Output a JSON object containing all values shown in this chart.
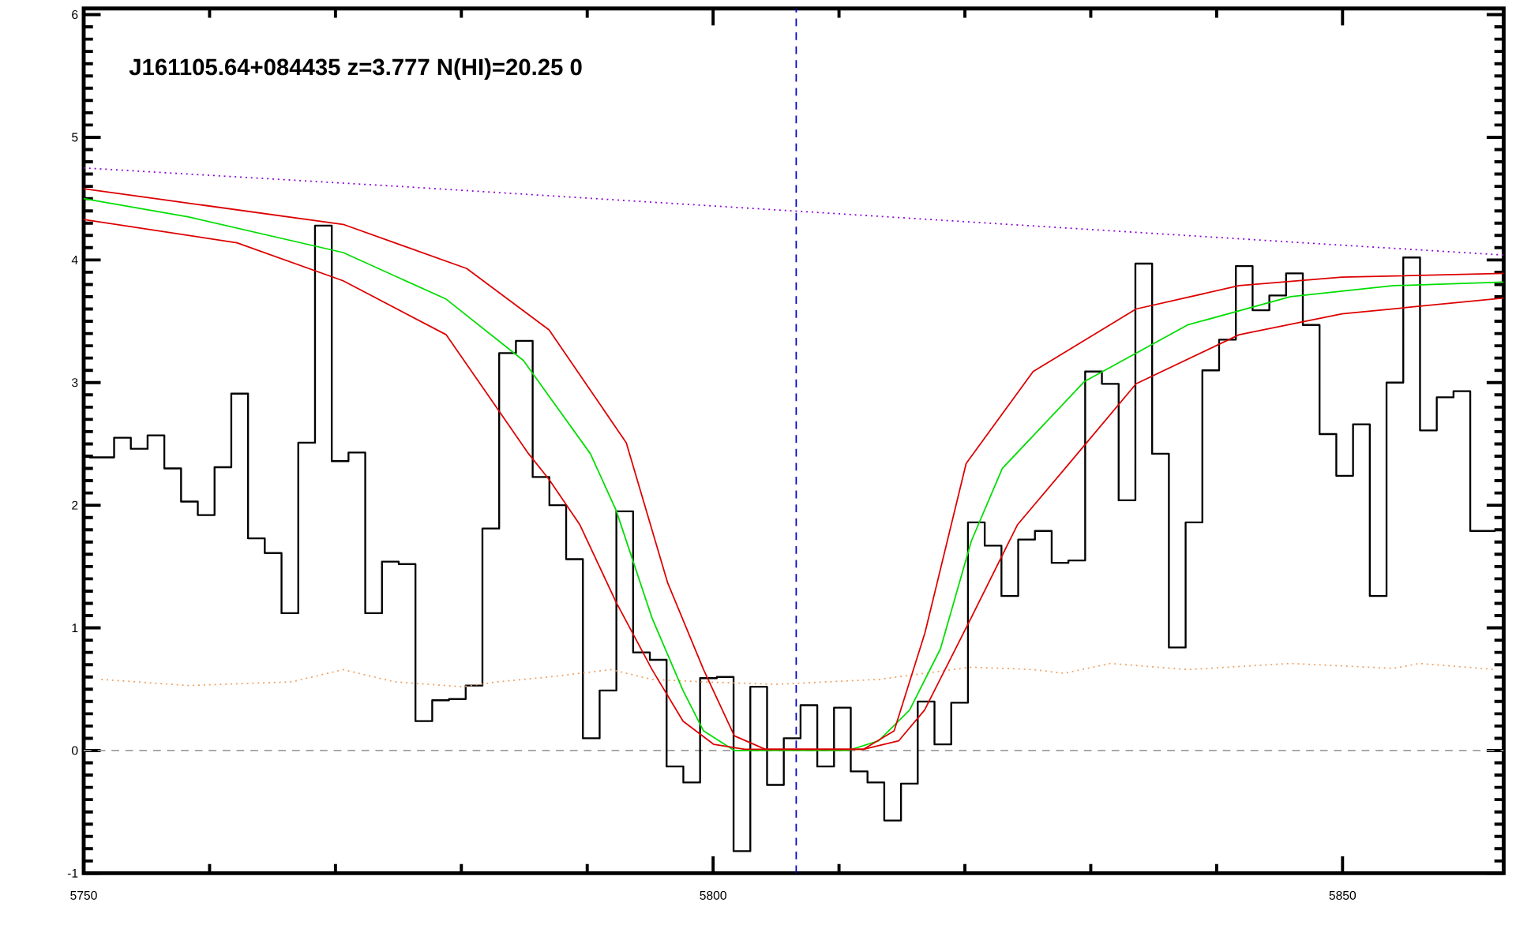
{
  "chart_data": {
    "type": "line",
    "title": "J161105.64+084435 z=3.777 N(HI)=20.25 0",
    "xlim": [
      5750,
      5862.8
    ],
    "ylim": [
      -1,
      6.05
    ],
    "xticks": [
      5750,
      5800,
      5850
    ],
    "yticks": [
      -1,
      0,
      1,
      2,
      3,
      4,
      5,
      6
    ],
    "series": [
      {
        "type": "step",
        "color": "#000000",
        "x": [
          5750.42,
          5751.75,
          5753.08,
          5754.41,
          5755.74,
          5757.07,
          5758.4,
          5759.73,
          5761.06,
          5762.39,
          5763.72,
          5765.05,
          5766.38,
          5767.71,
          5769.04,
          5770.37,
          5771.7,
          5773.03,
          5774.36,
          5775.69,
          5777.02,
          5778.35,
          5779.68,
          5781.01,
          5782.34,
          5783.67,
          5785.0,
          5786.33,
          5787.66,
          5788.99,
          5790.32,
          5791.65,
          5792.98,
          5794.31,
          5795.64,
          5796.97,
          5798.3,
          5799.63,
          5800.96,
          5802.29,
          5803.62,
          5804.95,
          5806.28,
          5807.61,
          5808.94,
          5810.27,
          5811.6,
          5812.93,
          5814.26,
          5815.59,
          5816.92,
          5818.25,
          5819.58,
          5820.91,
          5822.24,
          5823.57,
          5824.9,
          5826.23,
          5827.56,
          5828.89,
          5830.22,
          5831.55,
          5832.88,
          5834.21,
          5835.54,
          5836.87,
          5838.2,
          5839.53,
          5840.86,
          5842.19,
          5843.52,
          5844.85,
          5846.18,
          5847.51,
          5848.84,
          5850.17,
          5851.5,
          5852.83,
          5854.16,
          5855.49,
          5856.82,
          5858.15,
          5859.48,
          5860.81,
          5862.14
        ],
        "values": [
          2.39,
          2.39,
          2.55,
          2.46,
          2.57,
          2.3,
          2.03,
          1.92,
          2.31,
          2.91,
          1.73,
          1.61,
          1.12,
          2.51,
          4.28,
          2.36,
          2.43,
          1.12,
          1.54,
          1.52,
          0.24,
          0.41,
          0.42,
          0.53,
          1.81,
          3.24,
          3.34,
          2.23,
          2.0,
          1.56,
          0.1,
          0.49,
          1.95,
          0.8,
          0.74,
          -0.13,
          -0.26,
          0.59,
          0.6,
          -0.82,
          0.52,
          -0.28,
          0.1,
          0.37,
          -0.13,
          0.35,
          -0.17,
          -0.26,
          -0.57,
          -0.27,
          0.4,
          0.05,
          0.39,
          1.86,
          1.67,
          1.26,
          1.72,
          1.79,
          1.53,
          1.55,
          3.09,
          2.99,
          2.04,
          3.97,
          2.42,
          0.84,
          1.86,
          3.1,
          3.35,
          3.95,
          3.59,
          3.71,
          3.89,
          3.47,
          2.58,
          2.24,
          2.66,
          1.26,
          3.0,
          4.02,
          2.61,
          2.88,
          2.93,
          1.79,
          1.79
        ]
      },
      {
        "color": "#8a00d4",
        "line_style": "dotted",
        "x": [
          5750,
          5775,
          5800,
          5825,
          5850,
          5862.8
        ],
        "values": [
          4.75,
          4.6,
          4.44,
          4.28,
          4.12,
          4.04
        ]
      },
      {
        "color": "#f0a060",
        "line_style": "dotted",
        "x": [
          5751.39,
          5758.34,
          5766.52,
          5770.61,
          5774.7,
          5780.02,
          5782.88,
          5786.97,
          5791.88,
          5795.16,
          5799.25,
          5804.97,
          5813.15,
          5820.51,
          5825.42,
          5827.87,
          5831.56,
          5837.69,
          5845.87,
          5854.05,
          5856.11,
          5862.25
        ],
        "values": [
          0.58,
          0.53,
          0.56,
          0.66,
          0.56,
          0.52,
          0.56,
          0.6,
          0.66,
          0.58,
          0.56,
          0.54,
          0.58,
          0.68,
          0.66,
          0.63,
          0.71,
          0.66,
          0.71,
          0.67,
          0.71,
          0.66
        ]
      },
      {
        "color": "#00dd00",
        "x": [
          5750,
          5758.34,
          5770.61,
          5778.8,
          5784.93,
          5790.25,
          5792.29,
          5795.15,
          5797.61,
          5799.24,
          5801.69,
          5810.7,
          5813.15,
          5815.61,
          5818.06,
          5820.52,
          5822.97,
          5829.51,
          5837.69,
          5845.87,
          5854.05,
          5862.8
        ],
        "values": [
          4.5,
          4.35,
          4.06,
          3.68,
          3.18,
          2.42,
          1.96,
          1.08,
          0.49,
          0.16,
          0.0,
          0.0,
          0.08,
          0.33,
          0.83,
          1.71,
          2.3,
          3.01,
          3.47,
          3.7,
          3.79,
          3.82
        ]
      },
      {
        "color": "#dd0000",
        "x": [
          5750,
          5770.61,
          5780.43,
          5786.97,
          5793.1,
          5796.38,
          5799.24,
          5801.69,
          5804.15,
          5811.93,
          5814.38,
          5816.83,
          5820.1,
          5825.42,
          5833.6,
          5841.78,
          5849.96,
          5862.8
        ],
        "values": [
          4.58,
          4.29,
          3.93,
          3.43,
          2.51,
          1.37,
          0.66,
          0.12,
          0.01,
          0.01,
          0.16,
          0.96,
          2.34,
          3.09,
          3.6,
          3.79,
          3.86,
          3.89
        ]
      },
      {
        "color": "#dd0000",
        "x": [
          5750,
          5762.17,
          5770.61,
          5778.8,
          5785.34,
          5786.97,
          5789.42,
          5792.29,
          5795.15,
          5797.61,
          5800.06,
          5802.51,
          5811.93,
          5814.75,
          5816.8,
          5820.49,
          5824.17,
          5828.28,
          5833.6,
          5841.78,
          5849.96,
          5862.8
        ],
        "values": [
          4.33,
          4.14,
          3.83,
          3.39,
          2.42,
          2.21,
          1.84,
          1.21,
          0.66,
          0.24,
          0.05,
          0.01,
          0.01,
          0.08,
          0.33,
          1.08,
          1.84,
          2.34,
          2.99,
          3.39,
          3.56,
          3.69
        ]
      }
    ],
    "ref_lines": [
      {
        "axis": "x",
        "value": 5806.6,
        "color": "#0000cc",
        "line_style": "dashed"
      },
      {
        "axis": "y",
        "value": 0,
        "color": "#a0a0a0",
        "line_style": "dashed"
      }
    ]
  }
}
